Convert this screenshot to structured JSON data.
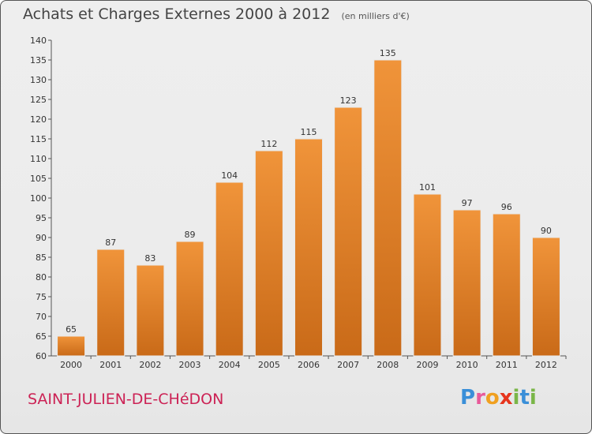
{
  "title": {
    "main": "Achats et Charges Externes 2000 à 2012",
    "sub": "(en milliers d'€)"
  },
  "commune": "SAINT-JULIEN-DE-CHéDON",
  "logo": {
    "text": "Proxiti",
    "letters": [
      {
        "ch": "P",
        "color": "#3a8fd8"
      },
      {
        "ch": "r",
        "color": "#e85a9a"
      },
      {
        "ch": "o",
        "color": "#f0a020"
      },
      {
        "ch": "x",
        "color": "#e6351d"
      },
      {
        "ch": "i",
        "color": "#7ab648"
      },
      {
        "ch": "t",
        "color": "#3a8fd8"
      },
      {
        "ch": "i",
        "color": "#7ab648"
      }
    ]
  },
  "chart_data": {
    "type": "bar",
    "title": "Achats et Charges Externes 2000 à 2012",
    "subtitle": "(en milliers d'€)",
    "categories": [
      "2000",
      "2001",
      "2002",
      "2003",
      "2004",
      "2005",
      "2006",
      "2007",
      "2008",
      "2009",
      "2010",
      "2011",
      "2012"
    ],
    "values": [
      65,
      87,
      83,
      89,
      104,
      112,
      115,
      123,
      135,
      101,
      97,
      96,
      90
    ],
    "ylim": [
      60,
      140
    ],
    "yticks": [
      60,
      65,
      70,
      75,
      80,
      85,
      90,
      95,
      100,
      105,
      110,
      115,
      120,
      125,
      130,
      135,
      140
    ],
    "grid": false,
    "bar_color": "#f0943a",
    "bar_color_dark": "#c96a18"
  }
}
